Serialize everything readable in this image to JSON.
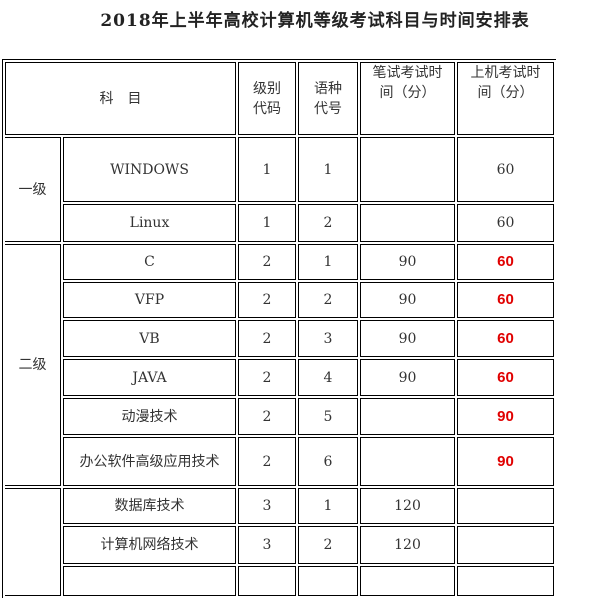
{
  "title": "2018年上半年高校计算机等级考试科目与时间安排表",
  "header": {
    "subject": "科　目",
    "level_code": "级别代码",
    "lang_code": "语种代号",
    "written_time": "笔试考试时间（分）",
    "computer_time": "上机考试时间（分）"
  },
  "levels": [
    {
      "name": "一级",
      "rows": [
        {
          "subject": "WINDOWS",
          "level": "1",
          "lang": "1",
          "written": "",
          "computer": "60",
          "highlight": false
        },
        {
          "subject": "Linux",
          "level": "1",
          "lang": "2",
          "written": "",
          "computer": "60",
          "highlight": false
        }
      ]
    },
    {
      "name": "二级",
      "rows": [
        {
          "subject": "C",
          "level": "2",
          "lang": "1",
          "written": "90",
          "computer": "60",
          "highlight": true
        },
        {
          "subject": "VFP",
          "level": "2",
          "lang": "2",
          "written": "90",
          "computer": "60",
          "highlight": true
        },
        {
          "subject": "VB",
          "level": "2",
          "lang": "3",
          "written": "90",
          "computer": "60",
          "highlight": true
        },
        {
          "subject": "JAVA",
          "level": "2",
          "lang": "4",
          "written": "90",
          "computer": "60",
          "highlight": true
        },
        {
          "subject": "动漫技术",
          "level": "2",
          "lang": "5",
          "written": "",
          "computer": "90",
          "highlight": true
        },
        {
          "subject": "办公软件高级应用技术",
          "level": "2",
          "lang": "6",
          "written": "",
          "computer": "90",
          "highlight": true
        }
      ]
    },
    {
      "name": "",
      "rows": [
        {
          "subject": "数据库技术",
          "level": "3",
          "lang": "1",
          "written": "120",
          "computer": "",
          "highlight": false
        },
        {
          "subject": "计算机网络技术",
          "level": "3",
          "lang": "2",
          "written": "120",
          "computer": "",
          "highlight": false
        },
        {
          "subject": "",
          "level": "",
          "lang": "",
          "written": "",
          "computer": "",
          "highlight": false
        }
      ]
    }
  ],
  "colors": {
    "highlight": "#e00000"
  }
}
